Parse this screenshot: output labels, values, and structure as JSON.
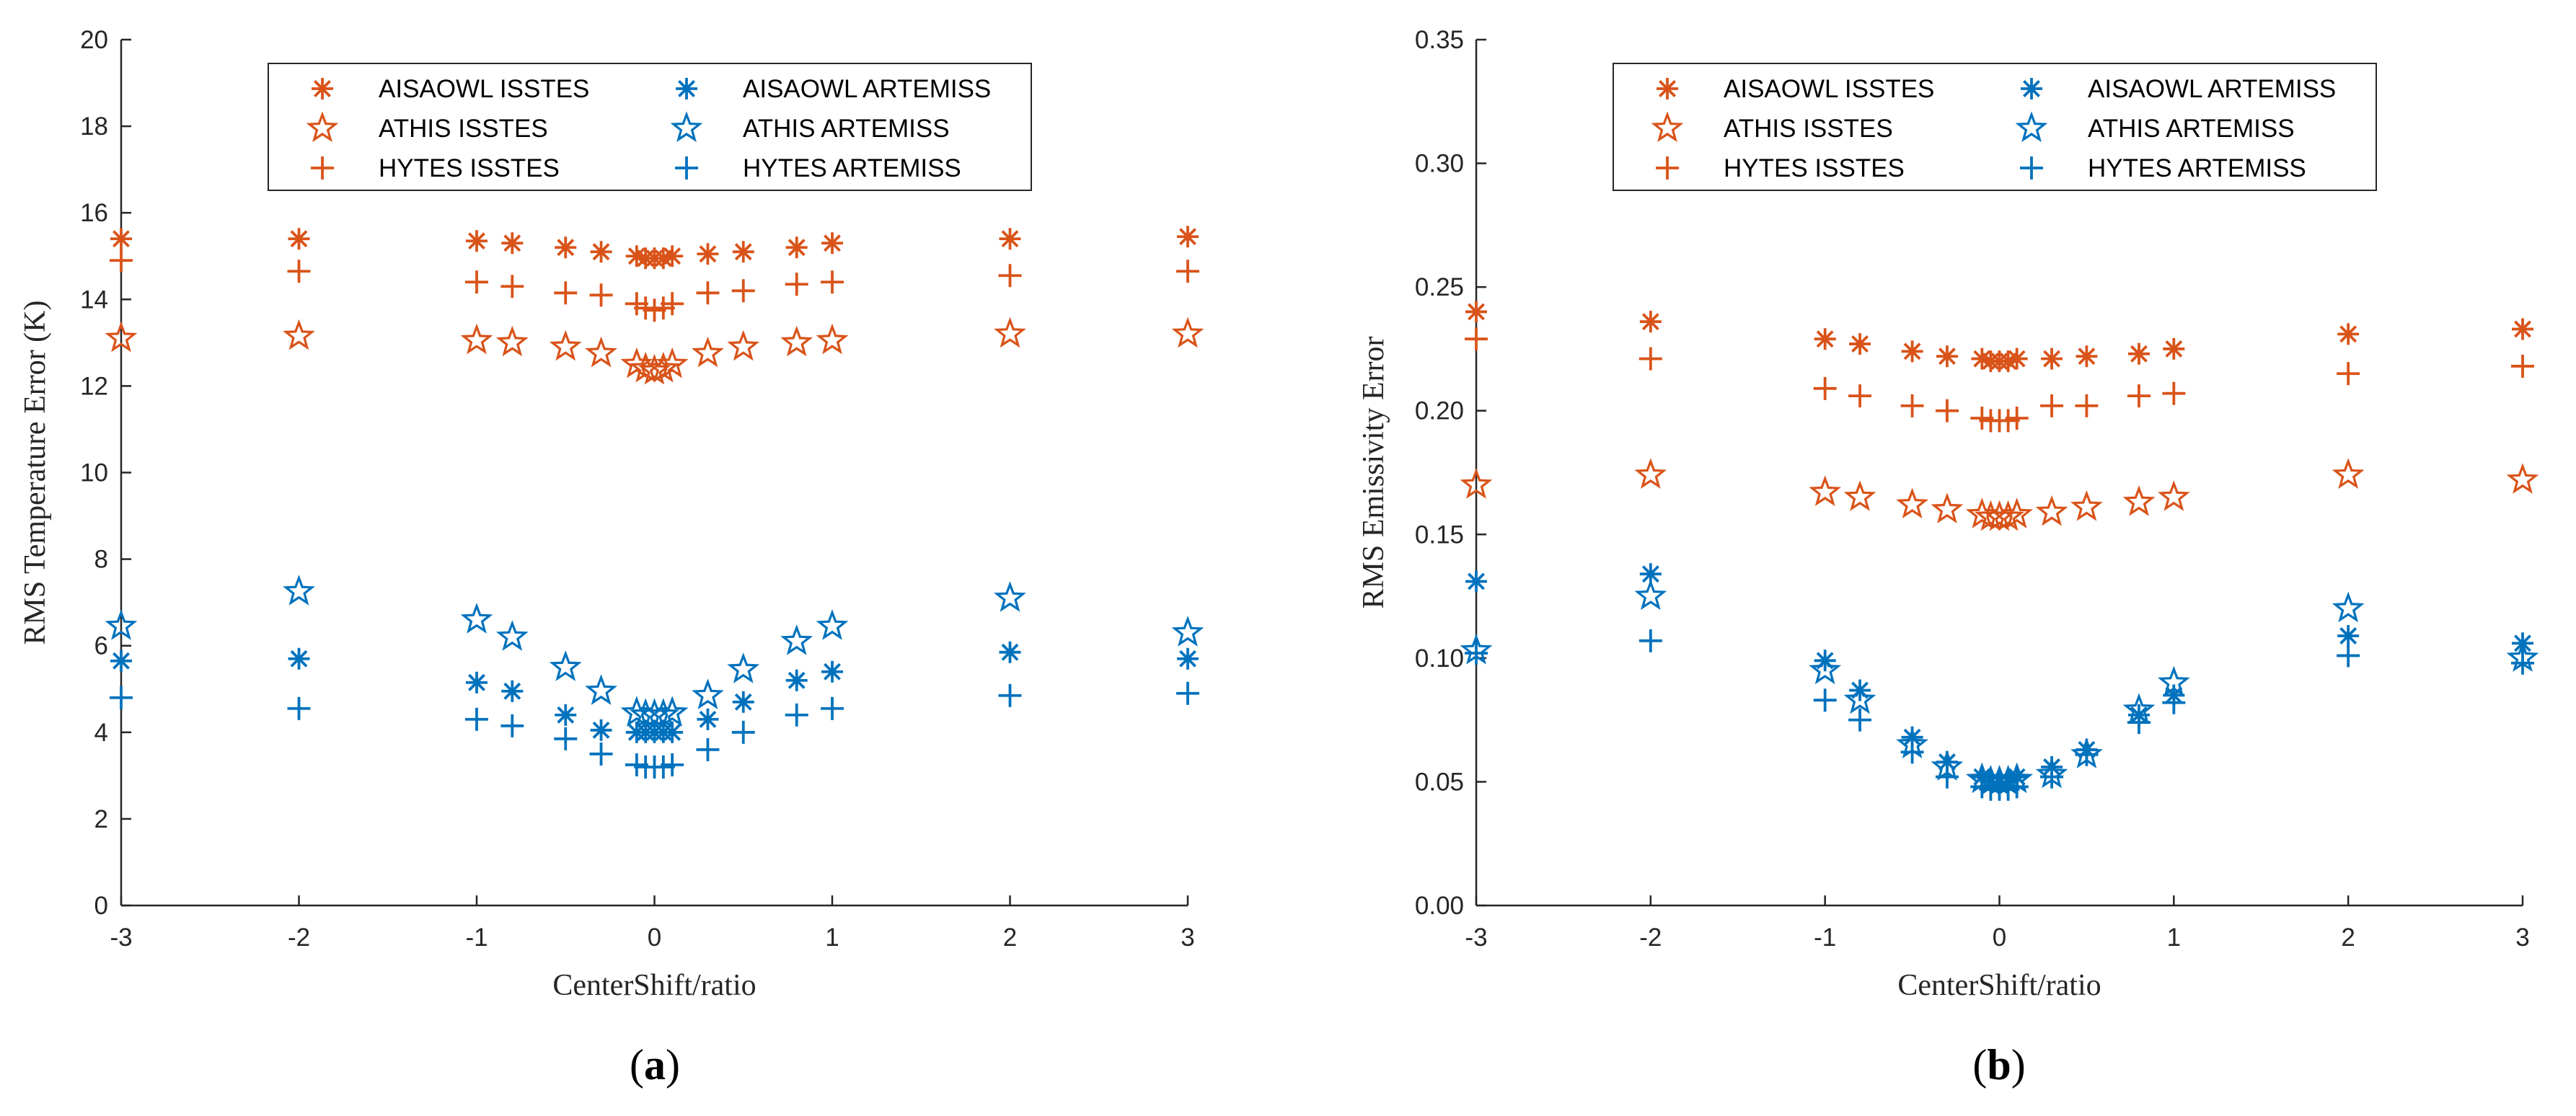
{
  "colors": {
    "isstes": "#D95319",
    "artemiss": "#0072BD",
    "axis": "#262626"
  },
  "chart_data": [
    {
      "type": "scatter",
      "panel_label": {
        "open": "(",
        "letter": "a",
        "close": ")"
      },
      "xlabel": "CenterShift/ratio",
      "ylabel": "RMS Temperature Error (K)",
      "xlim": [
        -3,
        3
      ],
      "ylim": [
        0,
        20
      ],
      "xticks": [
        -3,
        -2,
        -1,
        0,
        1,
        2,
        3
      ],
      "xtick_labels": [
        "-3",
        "-2",
        "-1",
        "0",
        "1",
        "2",
        "3"
      ],
      "yticks": [
        0,
        2,
        4,
        6,
        8,
        10,
        12,
        14,
        16,
        18,
        20
      ],
      "ytick_labels": [
        "0",
        "2",
        "4",
        "6",
        "8",
        "10",
        "12",
        "14",
        "16",
        "18",
        "20"
      ],
      "x": [
        -3,
        -2,
        -1,
        -0.8,
        -0.5,
        -0.3,
        -0.1,
        -0.05,
        0,
        0.05,
        0.1,
        0.3,
        0.5,
        0.8,
        1,
        2,
        3
      ],
      "series": [
        {
          "name": "AISAOWL ISSTES",
          "marker": "asterisk",
          "color": "isstes",
          "values": [
            15.4,
            15.4,
            15.35,
            15.3,
            15.2,
            15.1,
            15.0,
            14.95,
            14.95,
            14.95,
            15.0,
            15.05,
            15.1,
            15.2,
            15.3,
            15.4,
            15.45
          ]
        },
        {
          "name": "ATHIS ISSTES",
          "marker": "star",
          "color": "isstes",
          "values": [
            13.1,
            13.15,
            13.05,
            13.0,
            12.9,
            12.75,
            12.5,
            12.4,
            12.35,
            12.4,
            12.5,
            12.75,
            12.9,
            13.0,
            13.05,
            13.2,
            13.2
          ]
        },
        {
          "name": "HYTES ISSTES",
          "marker": "plus",
          "color": "isstes",
          "values": [
            14.9,
            14.65,
            14.4,
            14.3,
            14.15,
            14.1,
            13.9,
            13.8,
            13.75,
            13.8,
            13.9,
            14.15,
            14.2,
            14.35,
            14.4,
            14.55,
            14.65
          ]
        },
        {
          "name": "AISAOWL ARTEMISS",
          "marker": "asterisk",
          "color": "artemiss",
          "values": [
            5.65,
            5.7,
            5.15,
            4.95,
            4.4,
            4.05,
            4.0,
            4.0,
            4.0,
            4.0,
            4.0,
            4.3,
            4.7,
            5.2,
            5.4,
            5.85,
            5.7
          ]
        },
        {
          "name": "ATHIS ARTEMISS",
          "marker": "star",
          "color": "artemiss",
          "values": [
            6.45,
            7.25,
            6.6,
            6.2,
            5.5,
            4.95,
            4.45,
            4.4,
            4.4,
            4.4,
            4.45,
            4.85,
            5.45,
            6.1,
            6.45,
            7.1,
            6.3
          ]
        },
        {
          "name": "HYTES ARTEMISS",
          "marker": "plus",
          "color": "artemiss",
          "values": [
            4.8,
            4.55,
            4.3,
            4.15,
            3.85,
            3.5,
            3.25,
            3.2,
            3.2,
            3.2,
            3.25,
            3.6,
            4.0,
            4.4,
            4.55,
            4.85,
            4.9
          ]
        }
      ]
    },
    {
      "type": "scatter",
      "panel_label": {
        "open": "(",
        "letter": "b",
        "close": ")"
      },
      "xlabel": "CenterShift/ratio",
      "ylabel": "RMS Emissivity Error",
      "xlim": [
        -3,
        3
      ],
      "ylim": [
        0,
        0.35
      ],
      "xticks": [
        -3,
        -2,
        -1,
        0,
        1,
        2,
        3
      ],
      "xtick_labels": [
        "-3",
        "-2",
        "-1",
        "0",
        "1",
        "2",
        "3"
      ],
      "yticks": [
        0,
        0.05,
        0.1,
        0.15,
        0.2,
        0.25,
        0.3,
        0.35
      ],
      "ytick_labels": [
        "0.00",
        "0.05",
        "0.10",
        "0.15",
        "0.20",
        "0.25",
        "0.30",
        "0.35"
      ],
      "x": [
        -3,
        -2,
        -1,
        -0.8,
        -0.5,
        -0.3,
        -0.1,
        -0.05,
        0,
        0.05,
        0.1,
        0.3,
        0.5,
        0.8,
        1,
        2,
        3
      ],
      "series": [
        {
          "name": "AISAOWL ISSTES",
          "marker": "asterisk",
          "color": "isstes",
          "values": [
            0.24,
            0.236,
            0.229,
            0.227,
            0.224,
            0.222,
            0.221,
            0.22,
            0.22,
            0.22,
            0.221,
            0.221,
            0.222,
            0.223,
            0.225,
            0.231,
            0.233
          ]
        },
        {
          "name": "ATHIS ISSTES",
          "marker": "star",
          "color": "isstes",
          "values": [
            0.17,
            0.174,
            0.167,
            0.165,
            0.162,
            0.16,
            0.158,
            0.157,
            0.157,
            0.157,
            0.158,
            0.159,
            0.161,
            0.163,
            0.165,
            0.174,
            0.172
          ]
        },
        {
          "name": "HYTES ISSTES",
          "marker": "plus",
          "color": "isstes",
          "values": [
            0.229,
            0.221,
            0.209,
            0.206,
            0.202,
            0.2,
            0.197,
            0.196,
            0.196,
            0.196,
            0.197,
            0.202,
            0.202,
            0.206,
            0.207,
            0.215,
            0.218
          ]
        },
        {
          "name": "AISAOWL ARTEMISS",
          "marker": "asterisk",
          "color": "artemiss",
          "values": [
            0.131,
            0.134,
            0.099,
            0.087,
            0.068,
            0.058,
            0.052,
            0.05,
            0.05,
            0.05,
            0.052,
            0.056,
            0.063,
            0.077,
            0.085,
            0.109,
            0.106
          ]
        },
        {
          "name": "ATHIS ARTEMISS",
          "marker": "star",
          "color": "artemiss",
          "values": [
            0.103,
            0.125,
            0.095,
            0.083,
            0.065,
            0.056,
            0.051,
            0.05,
            0.05,
            0.05,
            0.051,
            0.053,
            0.061,
            0.079,
            0.09,
            0.12,
            0.1
          ]
        },
        {
          "name": "HYTES ARTEMISS",
          "marker": "plus",
          "color": "artemiss",
          "values": [
            0.102,
            0.107,
            0.083,
            0.075,
            0.062,
            0.052,
            0.048,
            0.047,
            0.047,
            0.047,
            0.048,
            0.052,
            0.061,
            0.074,
            0.082,
            0.101,
            0.098
          ]
        }
      ]
    }
  ]
}
